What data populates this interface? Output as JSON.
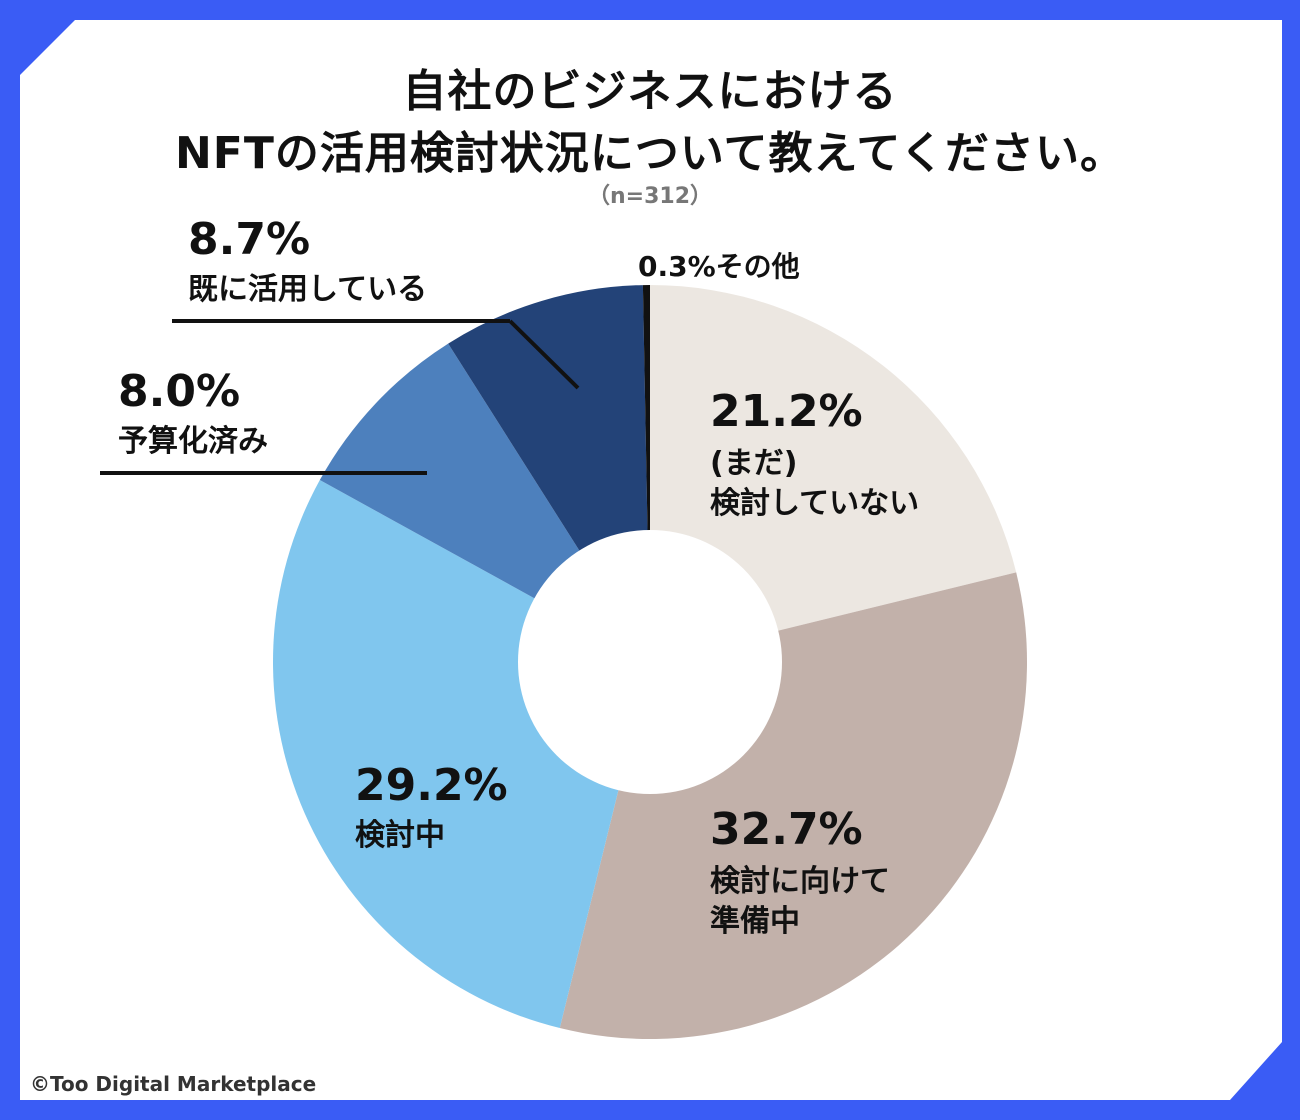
{
  "title_line1": "自社のビジネスにおける",
  "title_line2": "NFTの活用検討状況について教えてください。",
  "sample_size": "（n=312）",
  "copyright": "©Too Digital Marketplace",
  "colors": {
    "background": "#3a5cf5",
    "card": "#ffffff",
    "not_considered": "#ece7e1",
    "preparing": "#c2b1aa",
    "considering": "#80c6ee",
    "budgeted": "#4d80bd",
    "already_using": "#234378",
    "other": "#111111"
  },
  "chart_data": {
    "type": "donut",
    "title": "自社のビジネスにおけるNFTの活用検討状況について教えてください。",
    "n": 312,
    "unit": "%",
    "start": "12 o'clock",
    "direction": "clockwise",
    "slices": [
      {
        "key": "not_considered",
        "pct_label": "21.2%",
        "label_lines": [
          "(まだ)",
          "検討していない"
        ],
        "value": 21.2
      },
      {
        "key": "preparing",
        "pct_label": "32.7%",
        "label_lines": [
          "検討に向けて",
          "準備中"
        ],
        "value": 32.7
      },
      {
        "key": "considering",
        "pct_label": "29.2%",
        "label_lines": [
          "検討中"
        ],
        "value": 29.2
      },
      {
        "key": "budgeted",
        "pct_label": "8.0%",
        "label_lines": [
          "予算化済み"
        ],
        "value": 8.0
      },
      {
        "key": "already_using",
        "pct_label": "8.7%",
        "label_lines": [
          "既に活用している"
        ],
        "value": 8.7
      },
      {
        "key": "other",
        "pct_label": "0.3%",
        "label_lines": [
          "その他"
        ],
        "value": 0.3
      }
    ]
  }
}
